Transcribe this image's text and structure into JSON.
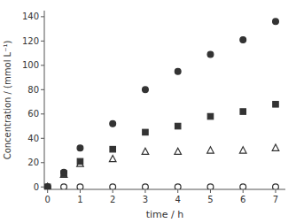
{
  "chart_data": {
    "type": "scatter",
    "x": [
      0,
      0.5,
      1,
      2,
      3,
      4,
      5,
      6,
      7
    ],
    "series": [
      {
        "color": "#333333",
        "marker": "circle",
        "values": [
          0,
          12,
          32,
          52,
          80,
          95,
          109,
          121,
          136
        ]
      },
      {
        "color": "#333333",
        "marker": "square",
        "values": [
          0,
          11,
          21,
          31,
          45,
          50,
          58,
          62,
          68
        ]
      },
      {
        "color": "#333333",
        "marker": "triangle-open",
        "values": [
          0,
          10,
          19,
          23,
          29,
          29,
          30,
          30,
          32
        ]
      },
      {
        "color": "#333333",
        "marker": "circle-open",
        "values": [
          0,
          0,
          0,
          0,
          0,
          0,
          0,
          0,
          0
        ]
      }
    ],
    "xlabel": "time / h",
    "ylabel": "Concentration / (mmol L⁻¹)",
    "xlim": [
      -0.1,
      7.3
    ],
    "ylim": [
      -2,
      145
    ],
    "xticks": [
      0,
      1,
      2,
      3,
      4,
      5,
      6,
      7
    ],
    "yticks": [
      0,
      20,
      40,
      60,
      80,
      100,
      120,
      140
    ],
    "grid": false
  }
}
